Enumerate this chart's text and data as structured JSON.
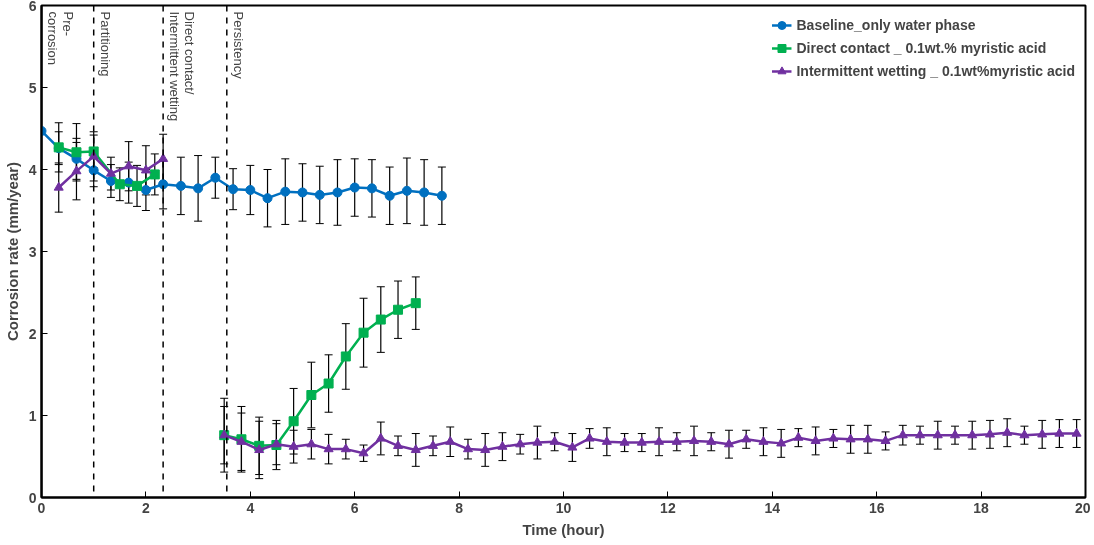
{
  "chart_data": {
    "type": "line",
    "xlabel": "Time (hour)",
    "ylabel": "Corrosion rate (mm/year)",
    "xlim": [
      0,
      20
    ],
    "ylim": [
      0,
      6
    ],
    "xticks": [
      0,
      2,
      4,
      6,
      8,
      10,
      12,
      14,
      16,
      18,
      20
    ],
    "yticks": [
      0,
      1,
      2,
      3,
      4,
      5,
      6
    ],
    "grid": false,
    "legend": "top right",
    "line_style": "solid",
    "series": [
      {
        "name": "Baseline_only water phase",
        "color": "#0070c0",
        "marker": "circle",
        "x": [
          0,
          0.33,
          0.67,
          1,
          1.33,
          1.67,
          2,
          2.33,
          2.67,
          3,
          3.33,
          3.67,
          4,
          4.33,
          4.67,
          5,
          5.33,
          5.67,
          6,
          6.33,
          6.67,
          7,
          7.33,
          7.67
        ],
        "values": [
          4.47,
          4.26,
          4.13,
          3.99,
          3.86,
          3.84,
          3.75,
          3.82,
          3.8,
          3.77,
          3.9,
          3.76,
          3.75,
          3.65,
          3.73,
          3.72,
          3.69,
          3.72,
          3.78,
          3.77,
          3.68,
          3.74,
          3.72,
          3.68
        ],
        "errors": [
          null,
          0.2,
          0.25,
          0.2,
          0.2,
          0.25,
          0.25,
          0.3,
          0.35,
          0.4,
          0.25,
          0.25,
          0.3,
          0.35,
          0.4,
          0.35,
          0.35,
          0.4,
          0.35,
          0.35,
          0.35,
          0.4,
          0.4,
          0.35
        ]
      },
      {
        "name": "Direct contact _ 0.1wt.% myristic acid",
        "color": "#00b050",
        "marker": "square",
        "x": [
          0.33,
          0.67,
          1,
          1.5,
          1.83,
          2.17,
          2.83,
          3.5,
          3.83,
          4.17,
          4.5,
          4.83,
          5.17,
          5.5,
          5.83,
          6.17,
          6.5,
          6.83,
          7.17
        ],
        "values": [
          4.27,
          4.21,
          4.22,
          3.82,
          3.8,
          3.94,
          null,
          0.76,
          0.71,
          0.63,
          0.64,
          0.93,
          1.25,
          1.39,
          1.72,
          2.01,
          2.17,
          2.29,
          2.37
        ],
        "errors": [
          0.3,
          0.35,
          0.2,
          0.2,
          0.25,
          0.25,
          null,
          0.45,
          0.4,
          0.35,
          0.3,
          0.4,
          0.4,
          0.35,
          0.4,
          0.42,
          0.4,
          0.35,
          0.32
        ]
      },
      {
        "name": "Intermittent wetting _ 0.1wt%myristic acid",
        "color": "#7030a0",
        "marker": "triangle",
        "x": [
          0.33,
          0.67,
          1,
          1.33,
          1.67,
          2,
          2.33,
          2.83,
          3.5,
          3.83,
          4.17,
          4.5,
          4.83,
          5.17,
          5.5,
          5.83,
          6.17,
          6.5,
          6.83,
          7.17,
          7.5,
          7.83,
          8.17,
          8.5,
          8.83,
          9.17,
          9.5,
          9.83,
          10.17,
          10.5,
          10.83,
          11.17,
          11.5,
          11.83,
          12.17,
          12.5,
          12.83,
          13.17,
          13.5,
          13.83,
          14.17,
          14.5,
          14.83,
          15.17,
          15.5,
          15.83,
          16.17,
          16.5,
          16.83,
          17.17,
          17.5,
          17.83,
          18.17,
          18.5,
          18.83,
          19.17,
          19.5,
          19.83
        ],
        "values": [
          3.78,
          3.98,
          4.16,
          3.95,
          4.04,
          3.99,
          4.13,
          null,
          0.76,
          0.68,
          0.58,
          0.65,
          0.62,
          0.65,
          0.59,
          0.59,
          0.54,
          0.72,
          0.63,
          0.58,
          0.63,
          0.68,
          0.59,
          0.58,
          0.62,
          0.65,
          0.67,
          0.68,
          0.61,
          0.72,
          0.68,
          0.67,
          0.67,
          0.68,
          0.68,
          0.69,
          0.68,
          0.65,
          0.71,
          0.68,
          0.66,
          0.73,
          0.69,
          0.72,
          0.71,
          0.71,
          0.69,
          0.76,
          0.76,
          0.76,
          0.76,
          0.76,
          0.77,
          0.79,
          0.76,
          0.77,
          0.78,
          0.78
        ],
        "errors": [
          0.3,
          0.35,
          0.3,
          0.2,
          0.3,
          0.3,
          0.3,
          null,
          0.35,
          0.35,
          0.35,
          0.25,
          0.2,
          0.18,
          0.18,
          0.12,
          0.1,
          0.2,
          0.12,
          0.2,
          0.12,
          0.18,
          0.12,
          0.2,
          0.17,
          0.12,
          0.2,
          0.11,
          0.17,
          0.12,
          0.17,
          0.11,
          0.11,
          0.17,
          0.11,
          0.18,
          0.11,
          0.17,
          0.11,
          0.17,
          0.17,
          0.11,
          0.17,
          0.11,
          0.17,
          0.17,
          0.11,
          0.12,
          0.11,
          0.17,
          0.11,
          0.17,
          0.17,
          0.17,
          0.11,
          0.17,
          0.17,
          0.17
        ]
      }
    ],
    "ref_lines": [
      {
        "axis": "x",
        "value": 0,
        "line_style": "solid",
        "color": "#000000",
        "label": "Pre-\ncorrosion"
      },
      {
        "axis": "x",
        "value": 1,
        "line_style": "dashed",
        "color": "#000000",
        "label": "Partitioning"
      },
      {
        "axis": "x",
        "value": 2.33,
        "line_style": "dashed",
        "color": "#000000",
        "label": "Direct contact/\nIntermittent wetting"
      },
      {
        "axis": "x",
        "value": 3.55,
        "line_style": "dashed",
        "color": "#000000",
        "label": "Persistency"
      }
    ]
  }
}
